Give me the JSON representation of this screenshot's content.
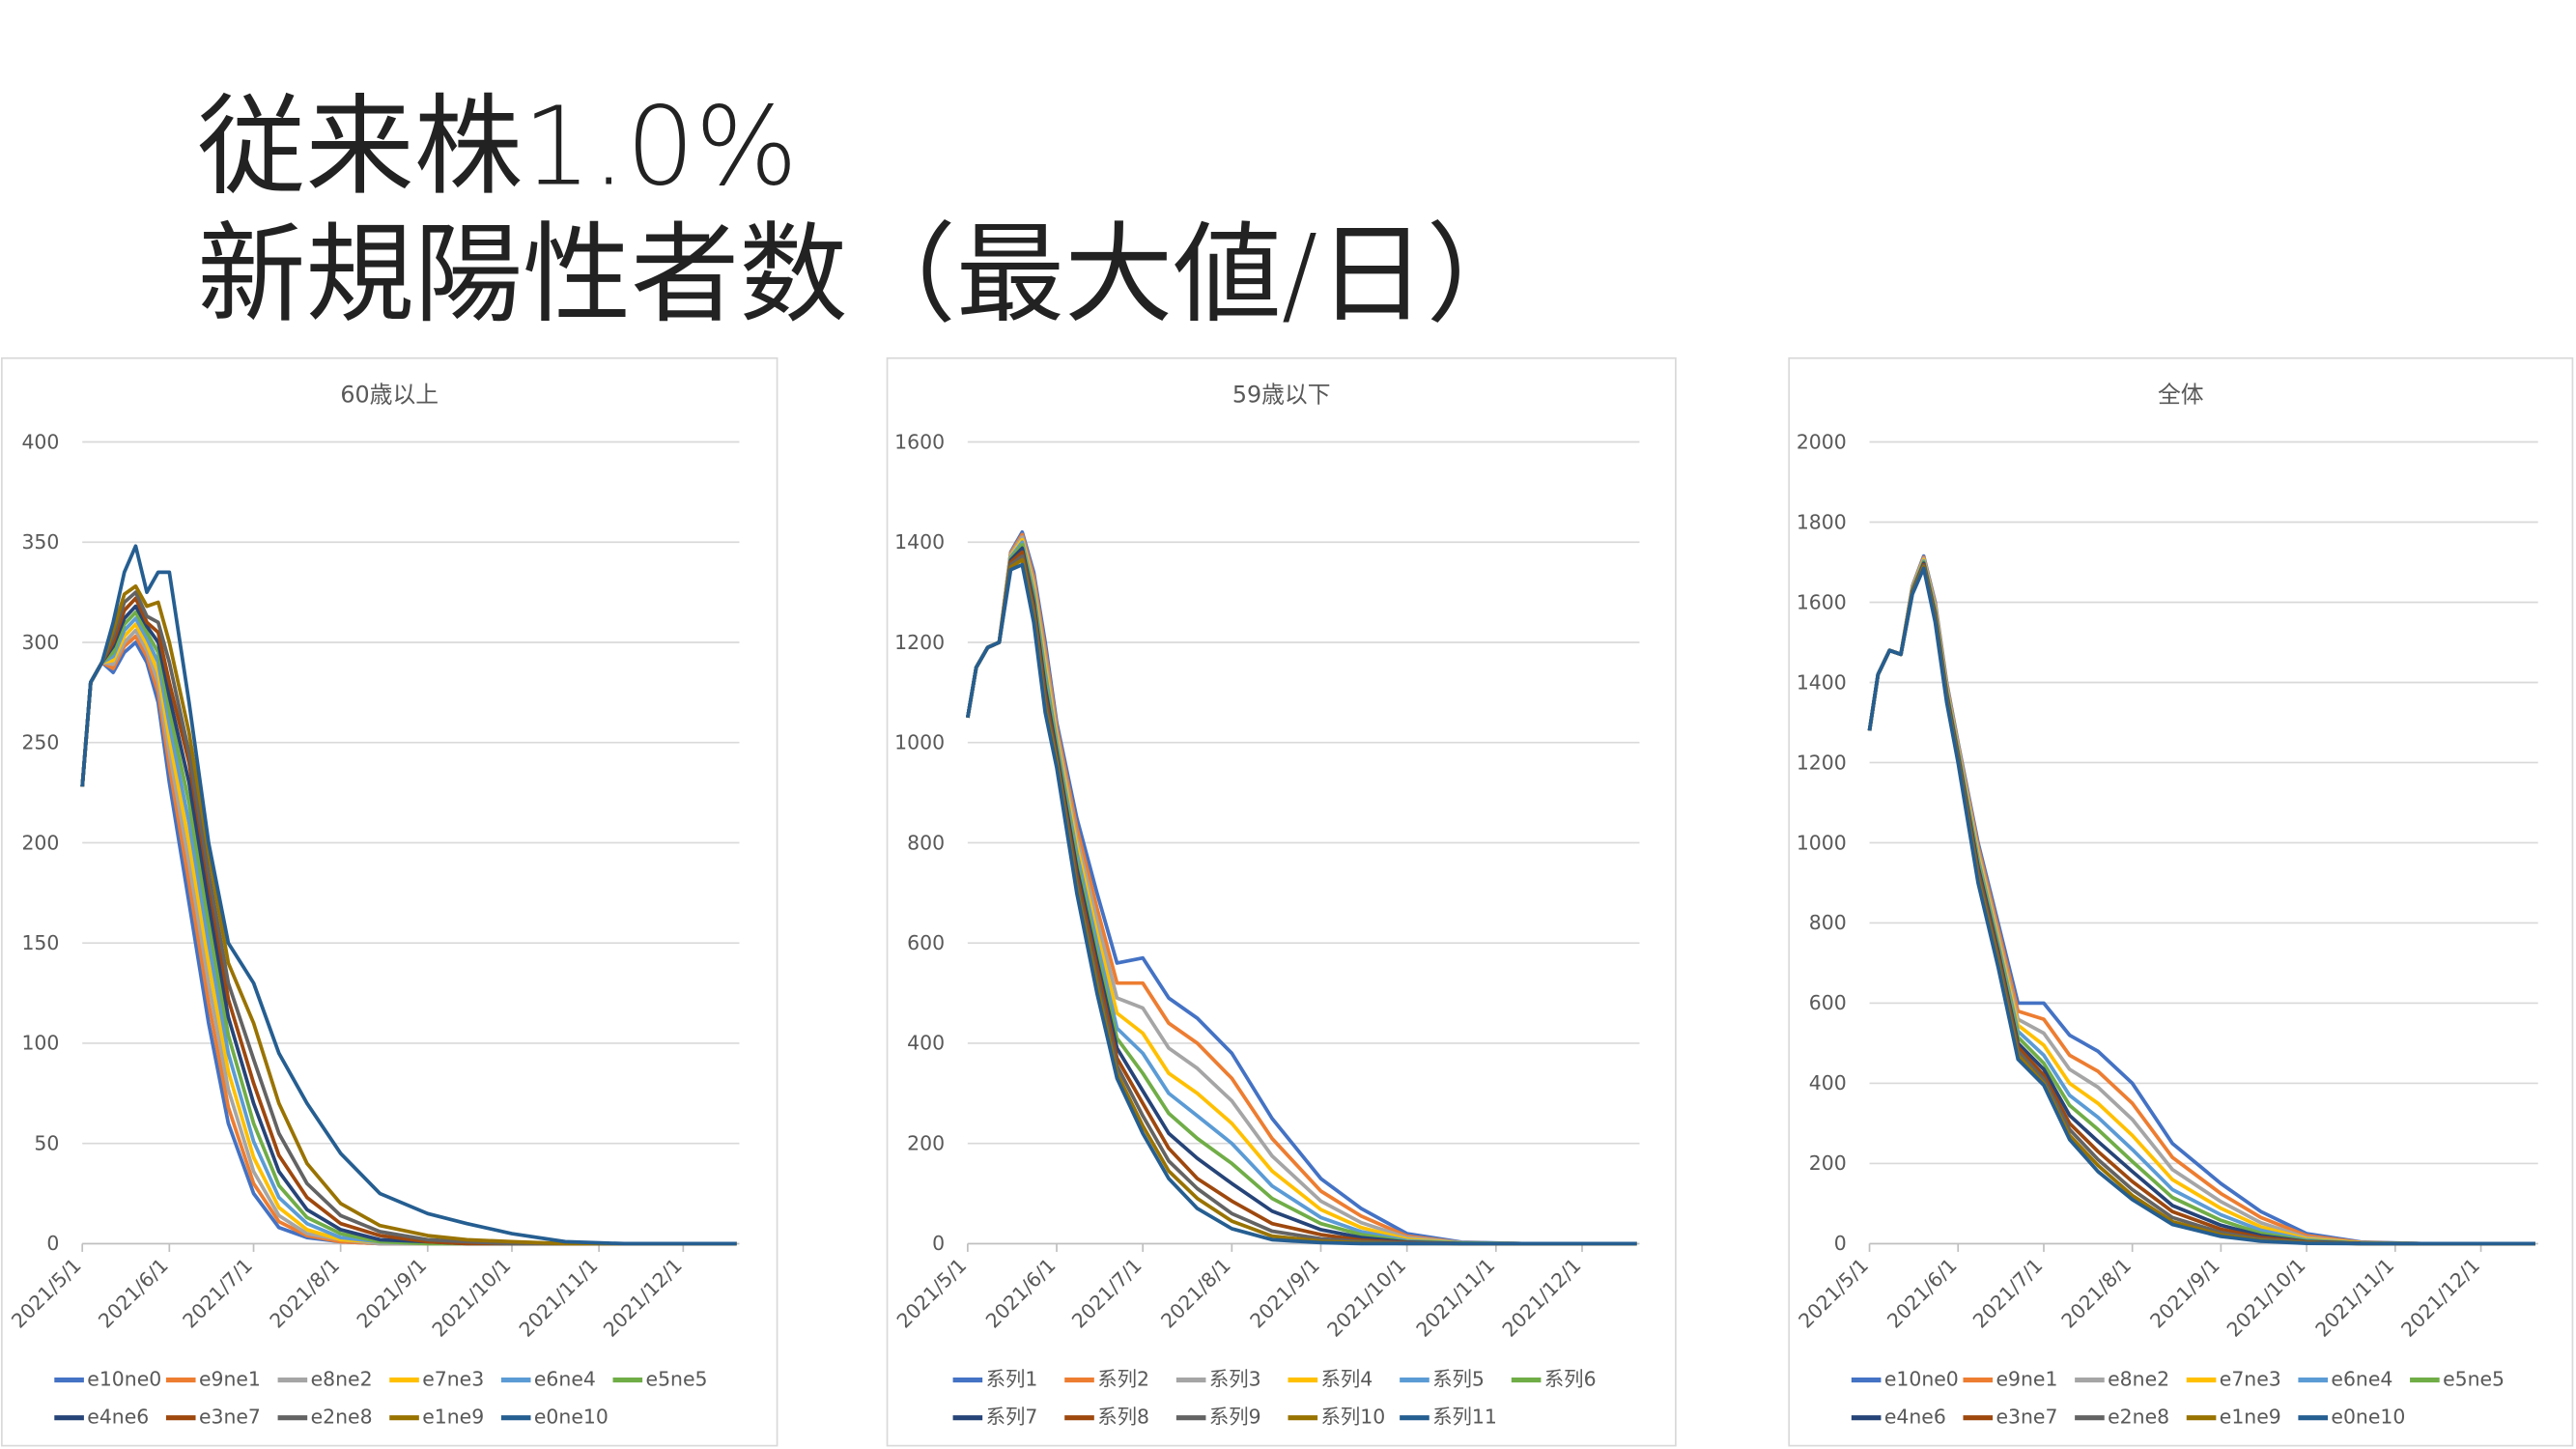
{
  "slide_title": [
    "従来株1.0%",
    "新規陽性者数（最大値/日）"
  ],
  "chart_data": [
    {
      "type": "line",
      "title": "60歳以上",
      "legend": "bottom",
      "grid": true,
      "x": [
        "2021/5/1",
        "2021/5/4",
        "2021/5/8",
        "2021/5/12",
        "2021/5/16",
        "2021/5/20",
        "2021/5/24",
        "2021/5/28",
        "2021/6/1",
        "2021/6/8",
        "2021/6/15",
        "2021/6/22",
        "2021/7/1",
        "2021/7/10",
        "2021/7/20",
        "2021/8/1",
        "2021/8/15",
        "2021/9/1",
        "2021/9/15",
        "2021/10/1",
        "2021/10/20",
        "2021/11/10",
        "2021/12/20"
      ],
      "xlim": [
        "2021/5/1",
        "2021/12/21"
      ],
      "xticks": [
        "2021/5/1",
        "2021/6/1",
        "2021/7/1",
        "2021/8/1",
        "2021/9/1",
        "2021/10/1",
        "2021/11/1",
        "2021/12/1"
      ],
      "ylim": [
        0,
        400
      ],
      "yticks": [
        0,
        50,
        100,
        150,
        200,
        250,
        300,
        350,
        400
      ],
      "series": [
        {
          "name": "e10ne0",
          "color": "#4472c4",
          "values": [
            228,
            280,
            290,
            285,
            295,
            300,
            290,
            270,
            230,
            170,
            110,
            60,
            25,
            8,
            3,
            1,
            0,
            0,
            0,
            0,
            0,
            0,
            0
          ]
        },
        {
          "name": "e9ne1",
          "color": "#ed7d31",
          "values": [
            228,
            280,
            290,
            287,
            298,
            303,
            293,
            275,
            238,
            180,
            120,
            68,
            30,
            11,
            4,
            1,
            0,
            0,
            0,
            0,
            0,
            0,
            0
          ]
        },
        {
          "name": "e8ne2",
          "color": "#a5a5a5",
          "values": [
            228,
            280,
            290,
            289,
            300,
            306,
            296,
            280,
            245,
            190,
            130,
            77,
            36,
            14,
            5,
            2,
            0,
            0,
            0,
            0,
            0,
            0,
            0
          ]
        },
        {
          "name": "e7ne3",
          "color": "#ffc000",
          "values": [
            228,
            280,
            290,
            291,
            303,
            309,
            299,
            285,
            252,
            200,
            140,
            86,
            43,
            18,
            7,
            2,
            1,
            0,
            0,
            0,
            0,
            0,
            0
          ]
        },
        {
          "name": "e6ne4",
          "color": "#5b9bd5",
          "values": [
            228,
            280,
            290,
            293,
            306,
            312,
            302,
            290,
            259,
            210,
            150,
            95,
            51,
            23,
            10,
            3,
            1,
            0,
            0,
            0,
            0,
            0,
            0
          ]
        },
        {
          "name": "e5ne5",
          "color": "#70ad47",
          "values": [
            228,
            280,
            290,
            295,
            309,
            315,
            305,
            295,
            266,
            220,
            160,
            104,
            60,
            29,
            13,
            5,
            1,
            0,
            0,
            0,
            0,
            0,
            0
          ]
        },
        {
          "name": "e4ne6",
          "color": "#264478",
          "values": [
            228,
            280,
            290,
            298,
            312,
            318,
            308,
            300,
            273,
            230,
            170,
            113,
            70,
            36,
            17,
            7,
            2,
            1,
            0,
            0,
            0,
            0,
            0
          ]
        },
        {
          "name": "e3ne7",
          "color": "#9e480e",
          "values": [
            228,
            280,
            290,
            300,
            316,
            322,
            310,
            305,
            280,
            240,
            180,
            122,
            80,
            44,
            23,
            10,
            4,
            1,
            0,
            0,
            0,
            0,
            0
          ]
        },
        {
          "name": "e2ne8",
          "color": "#636363",
          "values": [
            228,
            280,
            290,
            303,
            320,
            325,
            313,
            310,
            290,
            245,
            185,
            130,
            92,
            55,
            30,
            14,
            6,
            2,
            1,
            0,
            0,
            0,
            0
          ]
        },
        {
          "name": "e1ne9",
          "color": "#997300",
          "values": [
            228,
            280,
            290,
            306,
            324,
            328,
            318,
            320,
            300,
            255,
            195,
            140,
            110,
            70,
            40,
            20,
            9,
            4,
            2,
            1,
            0,
            0,
            0
          ]
        },
        {
          "name": "e0ne10",
          "color": "#255e91",
          "values": [
            228,
            280,
            290,
            310,
            335,
            348,
            325,
            335,
            335,
            270,
            200,
            150,
            130,
            95,
            70,
            45,
            25,
            15,
            10,
            5,
            1,
            0,
            0
          ]
        }
      ]
    },
    {
      "type": "line",
      "title": "59歳以下",
      "legend": "bottom",
      "grid": true,
      "x": [
        "2021/5/1",
        "2021/5/4",
        "2021/5/8",
        "2021/5/12",
        "2021/5/16",
        "2021/5/20",
        "2021/5/24",
        "2021/5/28",
        "2021/6/1",
        "2021/6/8",
        "2021/6/15",
        "2021/6/22",
        "2021/7/1",
        "2021/7/10",
        "2021/7/20",
        "2021/8/1",
        "2021/8/15",
        "2021/9/1",
        "2021/9/15",
        "2021/10/1",
        "2021/10/20",
        "2021/11/10",
        "2021/12/20"
      ],
      "xlim": [
        "2021/5/1",
        "2021/12/21"
      ],
      "xticks": [
        "2021/5/1",
        "2021/6/1",
        "2021/7/1",
        "2021/8/1",
        "2021/9/1",
        "2021/10/1",
        "2021/11/1",
        "2021/12/1"
      ],
      "ylim": [
        0,
        1600
      ],
      "yticks": [
        0,
        200,
        400,
        600,
        800,
        1000,
        1200,
        1400,
        1600
      ],
      "series": [
        {
          "name": "系列1",
          "color": "#4472c4",
          "values": [
            1050,
            1150,
            1190,
            1200,
            1380,
            1420,
            1340,
            1200,
            1040,
            850,
            700,
            560,
            570,
            490,
            450,
            380,
            250,
            130,
            70,
            20,
            3,
            0,
            0
          ]
        },
        {
          "name": "系列2",
          "color": "#ed7d31",
          "values": [
            1050,
            1150,
            1190,
            1200,
            1378,
            1415,
            1330,
            1185,
            1030,
            830,
            670,
            520,
            520,
            440,
            400,
            330,
            210,
            105,
            55,
            15,
            2,
            0,
            0
          ]
        },
        {
          "name": "系列3",
          "color": "#a5a5a5",
          "values": [
            1050,
            1150,
            1190,
            1200,
            1375,
            1410,
            1320,
            1170,
            1020,
            810,
            645,
            490,
            470,
            390,
            350,
            285,
            175,
            85,
            42,
            12,
            2,
            0,
            0
          ]
        },
        {
          "name": "系列4",
          "color": "#ffc000",
          "values": [
            1050,
            1150,
            1190,
            1200,
            1372,
            1405,
            1310,
            1155,
            1010,
            795,
            620,
            460,
            420,
            340,
            300,
            240,
            145,
            68,
            32,
            9,
            1,
            0,
            0
          ]
        },
        {
          "name": "系列5",
          "color": "#5b9bd5",
          "values": [
            1050,
            1150,
            1190,
            1200,
            1370,
            1400,
            1300,
            1140,
            1000,
            780,
            600,
            430,
            380,
            300,
            255,
            200,
            115,
            52,
            24,
            6,
            1,
            0,
            0
          ]
        },
        {
          "name": "系列6",
          "color": "#70ad47",
          "values": [
            1050,
            1150,
            1190,
            1200,
            1367,
            1395,
            1290,
            1125,
            990,
            765,
            580,
            410,
            340,
            260,
            210,
            160,
            90,
            40,
            18,
            4,
            1,
            0,
            0
          ]
        },
        {
          "name": "系列7",
          "color": "#264478",
          "values": [
            1050,
            1150,
            1190,
            1200,
            1364,
            1388,
            1280,
            1110,
            980,
            750,
            565,
            390,
            305,
            220,
            170,
            120,
            65,
            28,
            12,
            3,
            0,
            0,
            0
          ]
        },
        {
          "name": "系列8",
          "color": "#9e480e",
          "values": [
            1050,
            1150,
            1190,
            1200,
            1360,
            1380,
            1270,
            1095,
            970,
            735,
            550,
            370,
            280,
            190,
            130,
            85,
            40,
            18,
            7,
            2,
            0,
            0,
            0
          ]
        },
        {
          "name": "系列9",
          "color": "#636363",
          "values": [
            1050,
            1150,
            1190,
            1200,
            1355,
            1372,
            1260,
            1080,
            965,
            720,
            530,
            355,
            255,
            165,
            110,
            60,
            25,
            10,
            4,
            1,
            0,
            0,
            0
          ]
        },
        {
          "name": "系列10",
          "color": "#997300",
          "values": [
            1050,
            1150,
            1190,
            1200,
            1350,
            1365,
            1250,
            1070,
            960,
            710,
            515,
            340,
            235,
            145,
            90,
            45,
            15,
            5,
            2,
            0,
            0,
            0,
            0
          ]
        },
        {
          "name": "系列11",
          "color": "#255e91",
          "values": [
            1050,
            1150,
            1190,
            1200,
            1345,
            1355,
            1240,
            1060,
            950,
            700,
            500,
            330,
            220,
            130,
            70,
            30,
            8,
            2,
            0,
            0,
            0,
            0,
            0
          ]
        }
      ]
    },
    {
      "type": "line",
      "title": "全体",
      "legend": "bottom",
      "grid": true,
      "x": [
        "2021/5/1",
        "2021/5/4",
        "2021/5/8",
        "2021/5/12",
        "2021/5/16",
        "2021/5/20",
        "2021/5/24",
        "2021/5/28",
        "2021/6/1",
        "2021/6/8",
        "2021/6/15",
        "2021/6/22",
        "2021/7/1",
        "2021/7/10",
        "2021/7/20",
        "2021/8/1",
        "2021/8/15",
        "2021/9/1",
        "2021/9/15",
        "2021/10/1",
        "2021/10/20",
        "2021/11/10",
        "2021/12/20"
      ],
      "xlim": [
        "2021/5/1",
        "2021/12/21"
      ],
      "xticks": [
        "2021/5/1",
        "2021/6/1",
        "2021/7/1",
        "2021/8/1",
        "2021/9/1",
        "2021/10/1",
        "2021/11/1",
        "2021/12/1"
      ],
      "ylim": [
        0,
        2000
      ],
      "yticks": [
        0,
        200,
        400,
        600,
        800,
        1000,
        1200,
        1400,
        1600,
        1800,
        2000
      ],
      "series": [
        {
          "name": "e10ne0",
          "color": "#4472c4",
          "values": [
            1280,
            1420,
            1480,
            1470,
            1640,
            1715,
            1600,
            1400,
            1250,
            1000,
            800,
            600,
            600,
            520,
            480,
            400,
            250,
            150,
            80,
            25,
            4,
            0,
            0
          ]
        },
        {
          "name": "e9ne1",
          "color": "#ed7d31",
          "values": [
            1280,
            1420,
            1480,
            1470,
            1638,
            1712,
            1595,
            1395,
            1245,
            990,
            785,
            580,
            560,
            470,
            430,
            350,
            215,
            125,
            65,
            20,
            3,
            0,
            0
          ]
        },
        {
          "name": "e8ne2",
          "color": "#a5a5a5",
          "values": [
            1280,
            1420,
            1480,
            1470,
            1636,
            1709,
            1590,
            1390,
            1240,
            980,
            770,
            560,
            525,
            435,
            390,
            310,
            185,
            105,
            52,
            15,
            2,
            0,
            0
          ]
        },
        {
          "name": "e7ne3",
          "color": "#ffc000",
          "values": [
            1280,
            1420,
            1480,
            1470,
            1634,
            1706,
            1585,
            1385,
            1235,
            970,
            760,
            545,
            495,
            400,
            350,
            270,
            160,
            88,
            42,
            12,
            2,
            0,
            0
          ]
        },
        {
          "name": "e6ne4",
          "color": "#5b9bd5",
          "values": [
            1280,
            1420,
            1480,
            1470,
            1632,
            1703,
            1580,
            1380,
            1230,
            960,
            750,
            530,
            470,
            370,
            315,
            235,
            135,
            72,
            33,
            9,
            1,
            0,
            0
          ]
        },
        {
          "name": "e5ne5",
          "color": "#70ad47",
          "values": [
            1280,
            1420,
            1480,
            1470,
            1630,
            1700,
            1575,
            1375,
            1225,
            950,
            740,
            515,
            450,
            345,
            285,
            205,
            115,
            58,
            26,
            7,
            1,
            0,
            0
          ]
        },
        {
          "name": "e4ne6",
          "color": "#264478",
          "values": [
            1280,
            1420,
            1480,
            1470,
            1628,
            1697,
            1570,
            1370,
            1220,
            940,
            730,
            500,
            435,
            320,
            255,
            180,
            95,
            46,
            20,
            5,
            1,
            0,
            0
          ]
        },
        {
          "name": "e3ne7",
          "color": "#9e480e",
          "values": [
            1280,
            1420,
            1480,
            1470,
            1626,
            1694,
            1565,
            1365,
            1215,
            930,
            720,
            490,
            420,
            300,
            230,
            155,
            80,
            36,
            15,
            4,
            0,
            0,
            0
          ]
        },
        {
          "name": "e2ne8",
          "color": "#636363",
          "values": [
            1280,
            1420,
            1480,
            1470,
            1624,
            1691,
            1560,
            1360,
            1210,
            920,
            710,
            480,
            410,
            285,
            210,
            135,
            65,
            28,
            11,
            3,
            0,
            0,
            0
          ]
        },
        {
          "name": "e1ne9",
          "color": "#997300",
          "values": [
            1280,
            1420,
            1480,
            1470,
            1622,
            1688,
            1555,
            1355,
            1205,
            910,
            700,
            470,
            400,
            270,
            195,
            120,
            55,
            22,
            8,
            2,
            0,
            0,
            0
          ]
        },
        {
          "name": "e0ne10",
          "color": "#255e91",
          "values": [
            1280,
            1420,
            1480,
            1470,
            1620,
            1685,
            1550,
            1350,
            1200,
            900,
            690,
            460,
            395,
            260,
            180,
            110,
            48,
            18,
            6,
            1,
            0,
            0,
            0
          ]
        }
      ]
    }
  ]
}
